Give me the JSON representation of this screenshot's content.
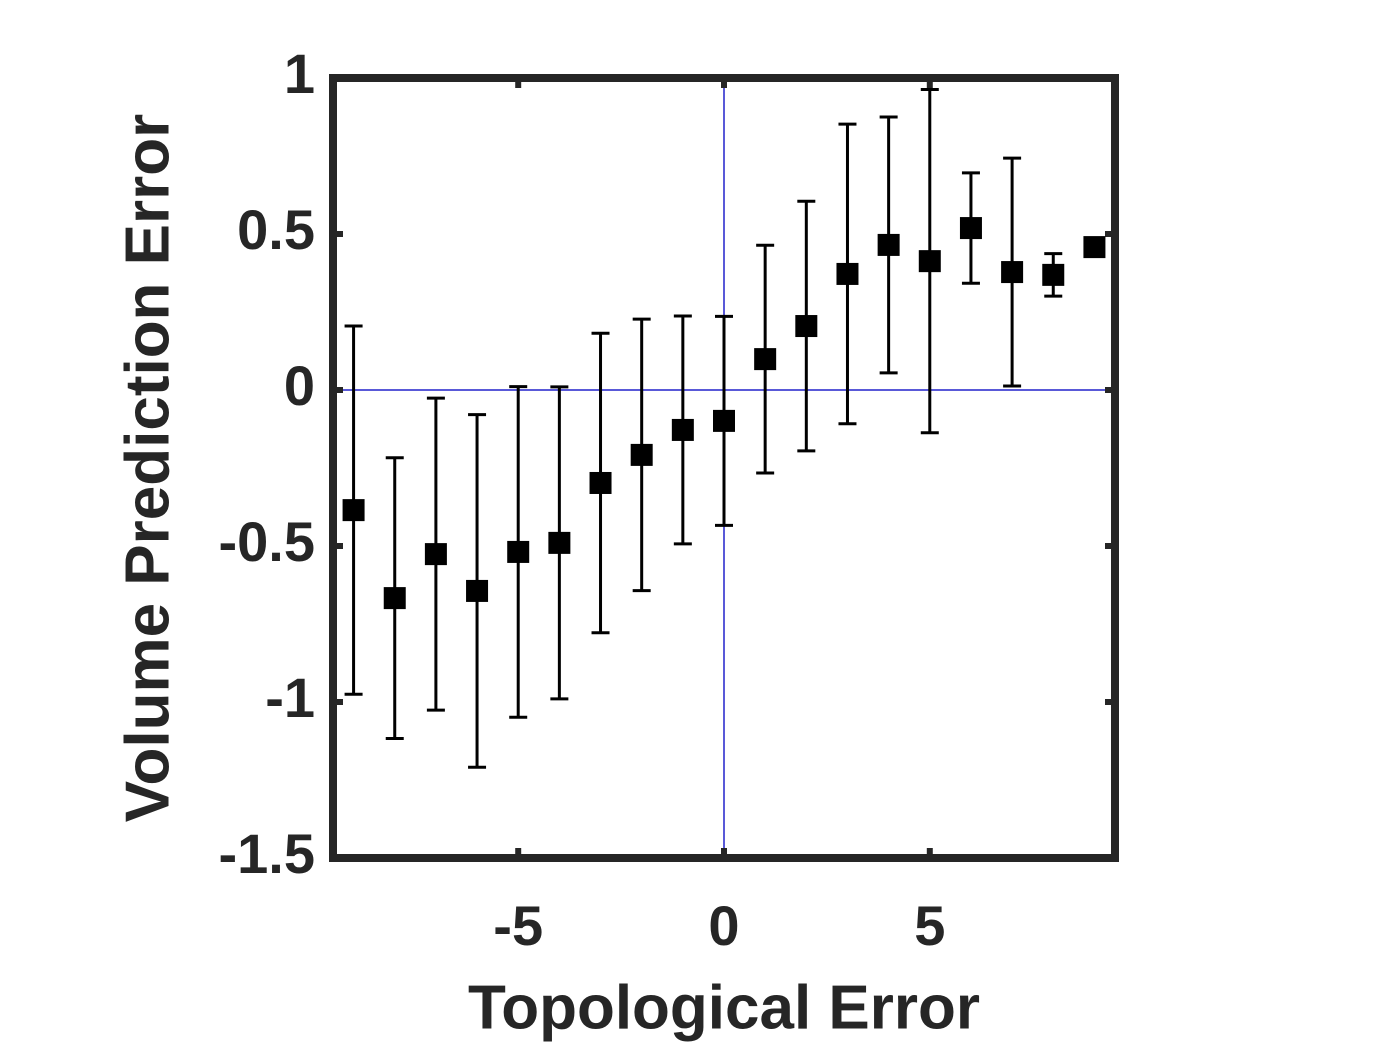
{
  "chart_data": {
    "type": "errorbar",
    "xlabel": "Topological Error",
    "ylabel": "Volume Prediction Error",
    "x": [
      -9,
      -8,
      -7,
      -6,
      -5,
      -4,
      -3,
      -2,
      -1,
      0,
      1,
      2,
      3,
      4,
      5,
      6,
      7,
      8,
      9
    ],
    "values": [
      -0.385,
      -0.667,
      -0.526,
      -0.644,
      -0.519,
      -0.49,
      -0.298,
      -0.208,
      -0.128,
      -0.099,
      0.099,
      0.205,
      0.372,
      0.465,
      0.413,
      0.519,
      0.378,
      0.369,
      0.458
    ],
    "errors": [
      0.59,
      0.45,
      0.5,
      0.565,
      0.53,
      0.5,
      0.48,
      0.435,
      0.365,
      0.335,
      0.365,
      0.4,
      0.48,
      0.41,
      0.55,
      0.177,
      0.365,
      0.068,
      0
    ],
    "color": "#000000",
    "reference_line_color": "#2222cc",
    "xlim": [
      -9.5,
      9.5
    ],
    "ylim": [
      -1.5,
      1
    ],
    "xticks": [
      -5,
      0,
      5
    ],
    "yticks": [
      -1.5,
      -1,
      -0.5,
      0,
      0.5,
      1
    ]
  }
}
